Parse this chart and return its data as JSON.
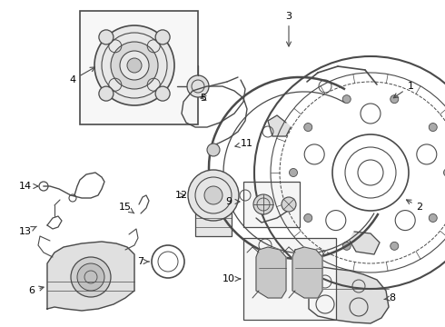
{
  "bg_color": "#ffffff",
  "line_color": "#4a4a4a",
  "fig_width": 4.9,
  "fig_height": 3.6,
  "dpi": 100
}
